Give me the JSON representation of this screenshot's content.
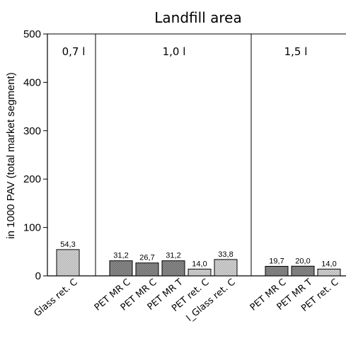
{
  "chart_data": {
    "type": "bar",
    "title": "Landfill area",
    "xlabel": "",
    "ylabel": "in 1000 PAV (total market segment)",
    "ylim": [
      0,
      500
    ],
    "yticks": [
      0,
      100,
      200,
      300,
      400,
      500
    ],
    "grid": false,
    "groups": [
      {
        "label": "0,7 l",
        "categories": [
          "Glass ret. C"
        ],
        "values": [
          54.3
        ],
        "value_labels": [
          "54,3"
        ],
        "fills": [
          "light"
        ]
      },
      {
        "label": "1,0 l",
        "categories": [
          "PET MR C",
          "PET MR C",
          "PET MR T",
          "PET ret. C",
          "Glass ret. C"
        ],
        "values": [
          31.2,
          26.7,
          31.2,
          14.0,
          33.8
        ],
        "value_labels": [
          "31,2",
          "26,7",
          "31,2",
          "14,0",
          "33,8"
        ],
        "fills": [
          "dark",
          "dark",
          "dark",
          "light",
          "light"
        ],
        "category_labels": [
          "PET MR C",
          "PET MR C",
          "PET MR T",
          "PET ret. C",
          "l_Glass ret. C"
        ]
      },
      {
        "label": "1,5 l",
        "categories": [
          "PET MR C",
          "PET MR T",
          "PET ret. C"
        ],
        "values": [
          19.7,
          20.0,
          14.0
        ],
        "value_labels": [
          "19,7",
          "20,0",
          "14,0"
        ],
        "fills": [
          "dark",
          "dark",
          "light"
        ]
      }
    ],
    "colors": {
      "dark": "#7a7a7a",
      "light": "#cfcfcf",
      "stroke": "#000000"
    }
  }
}
